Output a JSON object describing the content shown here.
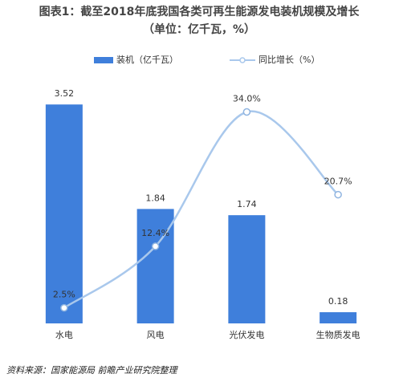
{
  "chart_data": {
    "type": "bar",
    "title": "图表1：截至2018年底我国各类可再生能源发电装机规模及增长",
    "subtitle": "（单位：亿千瓦，%）",
    "categories": [
      "水电",
      "风电",
      "光伏发电",
      "生物质发电"
    ],
    "series": [
      {
        "name": "装机（亿千瓦）",
        "type": "bar",
        "color": "#3f7fdb",
        "values": [
          3.52,
          1.84,
          1.74,
          0.18
        ]
      },
      {
        "name": "同比增长（%）",
        "type": "line",
        "axis": "y2",
        "color": "#a9c8ec",
        "values": [
          2.5,
          12.4,
          34.0,
          20.7
        ],
        "value_labels": [
          "2.5%",
          "12.4%",
          "34.0%",
          "20.7%"
        ]
      }
    ],
    "ylim": [
      0,
      4
    ],
    "y2lim": [
      0,
      40
    ],
    "source": "资料来源：国家能源局 前瞻产业研究院整理"
  }
}
